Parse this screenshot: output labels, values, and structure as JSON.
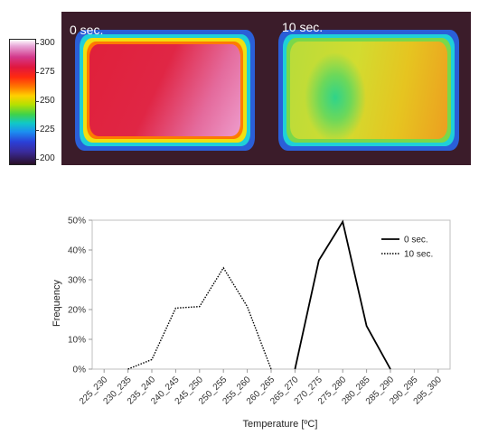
{
  "thermal_image": {
    "scale_labels": [
      "300",
      "275",
      "250",
      "225",
      "200"
    ],
    "captions": [
      "0 sec.",
      "10 sec."
    ]
  },
  "chart_data": {
    "type": "line",
    "categories": [
      "225_230",
      "230_235",
      "235_240",
      "240_245",
      "245_250",
      "250_255",
      "255_260",
      "260_265",
      "265_270",
      "270_275",
      "275_280",
      "280_285",
      "285_290",
      "290_295",
      "295_300"
    ],
    "series": [
      {
        "name": "0 sec.",
        "style": "solid",
        "values": [
          0,
          0,
          0,
          0,
          0,
          0,
          0,
          0,
          0,
          36.5,
          49.5,
          14.5,
          0,
          0,
          0
        ]
      },
      {
        "name": "10 sec.",
        "style": "dotted",
        "values": [
          0,
          0,
          3.2,
          20.5,
          21,
          34,
          21,
          0,
          0,
          0,
          0,
          0,
          0,
          0,
          0
        ]
      }
    ],
    "ylim": [
      0,
      50
    ],
    "yticks": [
      "0%",
      "10%",
      "20%",
      "30%",
      "40%",
      "50%"
    ],
    "xlabel": "Temperature [ºC]",
    "ylabel": "Frequency",
    "legend_position": "top-right",
    "grid": false
  }
}
